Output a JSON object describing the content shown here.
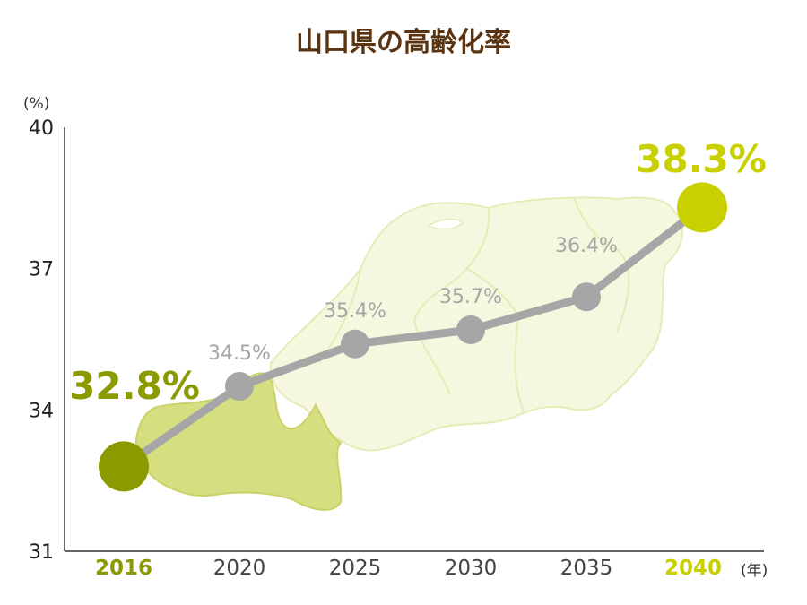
{
  "title": "山口県の高齢化率",
  "y_unit": "(%)",
  "x_unit": "(年)",
  "colors": {
    "title": "#5a3410",
    "line": "#a6a6a6",
    "first_point": "#8a9a00",
    "last_point": "#c8d000",
    "map_highlight": "#d6df80",
    "map_base": "#f5f7de",
    "axis": "#333333",
    "data_label": "#a6a6a6"
  },
  "chart_data": {
    "type": "line",
    "title": "山口県の高齢化率",
    "xlabel": "(年)",
    "ylabel": "(%)",
    "x": [
      "2016",
      "2020",
      "2025",
      "2030",
      "2035",
      "2040"
    ],
    "series": [
      {
        "values": [
          32.8,
          34.5,
          35.4,
          35.7,
          36.4,
          38.3
        ],
        "labels": [
          "32.8%",
          "34.5%",
          "35.4%",
          "35.7%",
          "36.4%",
          "38.3%"
        ]
      }
    ],
    "yticks": [
      31,
      34,
      37,
      40
    ],
    "ylim": [
      31,
      40
    ],
    "grid": false,
    "legend": "none"
  }
}
